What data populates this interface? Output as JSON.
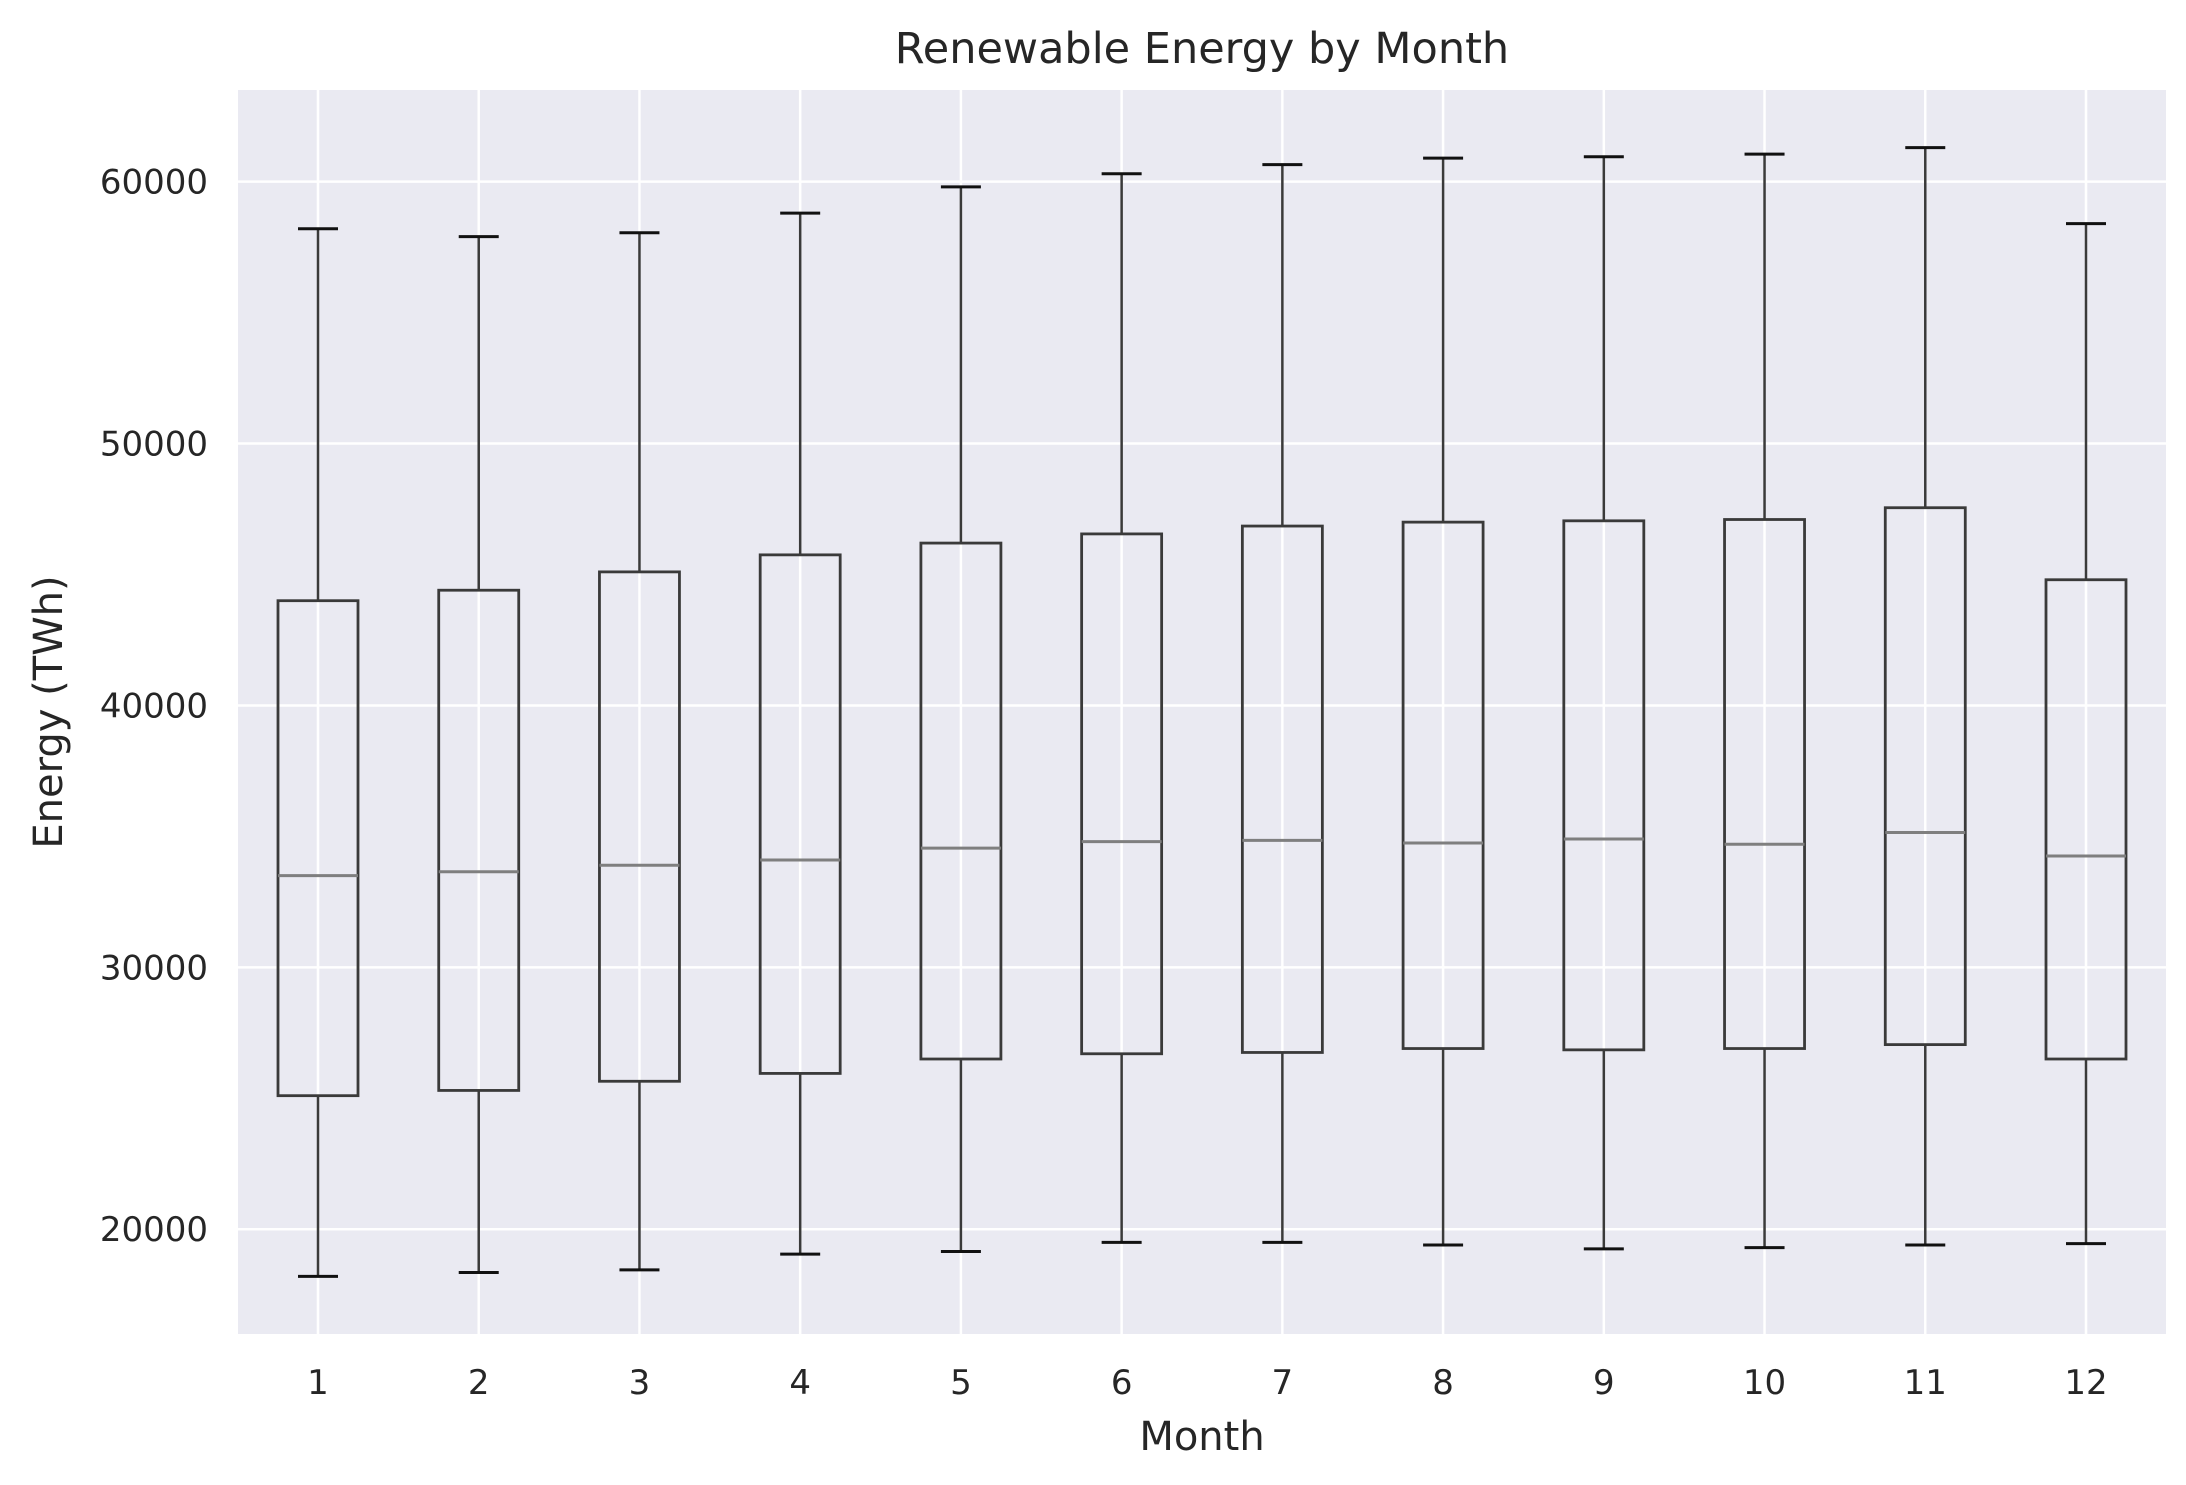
{
  "colors": {
    "plot_background": "#EAEAF2",
    "grid": "#FFFFFF",
    "box_stroke": "#3A3A3A",
    "median": "#7F7F7F",
    "text": "#262626"
  },
  "chart_data": {
    "type": "boxplot",
    "title": "Renewable Energy by Month",
    "xlabel": "Month",
    "ylabel": "Energy (TWh)",
    "ylim": [
      16000,
      63500
    ],
    "yticks": [
      20000,
      30000,
      40000,
      50000,
      60000
    ],
    "grid": true,
    "categories": [
      "1",
      "2",
      "3",
      "4",
      "5",
      "6",
      "7",
      "8",
      "9",
      "10",
      "11",
      "12"
    ],
    "boxes": [
      {
        "whisker_low": 18200,
        "q1": 25100,
        "median": 33500,
        "q3": 44000,
        "whisker_high": 58200
      },
      {
        "whisker_low": 18350,
        "q1": 25300,
        "median": 33650,
        "q3": 44400,
        "whisker_high": 57900
      },
      {
        "whisker_low": 18450,
        "q1": 25650,
        "median": 33900,
        "q3": 45100,
        "whisker_high": 58050
      },
      {
        "whisker_low": 19050,
        "q1": 25950,
        "median": 34100,
        "q3": 45750,
        "whisker_high": 58800
      },
      {
        "whisker_low": 19150,
        "q1": 26500,
        "median": 34550,
        "q3": 46200,
        "whisker_high": 59800
      },
      {
        "whisker_low": 19500,
        "q1": 26700,
        "median": 34800,
        "q3": 46550,
        "whisker_high": 60300
      },
      {
        "whisker_low": 19500,
        "q1": 26750,
        "median": 34850,
        "q3": 46850,
        "whisker_high": 60650
      },
      {
        "whisker_low": 19400,
        "q1": 26900,
        "median": 34750,
        "q3": 47000,
        "whisker_high": 60900
      },
      {
        "whisker_low": 19250,
        "q1": 26850,
        "median": 34900,
        "q3": 47050,
        "whisker_high": 60950
      },
      {
        "whisker_low": 19300,
        "q1": 26900,
        "median": 34700,
        "q3": 47100,
        "whisker_high": 61050
      },
      {
        "whisker_low": 19400,
        "q1": 27050,
        "median": 35150,
        "q3": 47550,
        "whisker_high": 61300
      },
      {
        "whisker_low": 19450,
        "q1": 26500,
        "median": 34250,
        "q3": 44800,
        "whisker_high": 58400
      }
    ]
  }
}
